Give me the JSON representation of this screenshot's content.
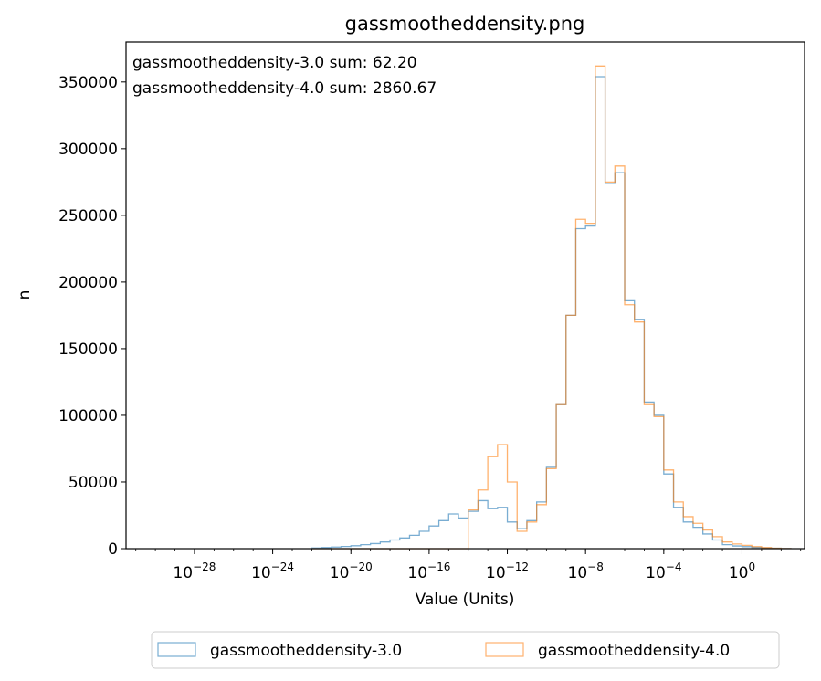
{
  "chart_data": {
    "type": "step-histogram",
    "title": "gassmootheddensity.png",
    "xlabel": "Value (Units)",
    "ylabel": "n",
    "xscale": "log",
    "xlim_log10": [
      -31.5,
      3.2
    ],
    "ylim": [
      0,
      380000
    ],
    "y_ticks": [
      0,
      50000,
      100000,
      150000,
      200000,
      250000,
      300000,
      350000
    ],
    "y_tick_labels": [
      "0",
      "50000",
      "100000",
      "150000",
      "200000",
      "250000",
      "300000",
      "350000"
    ],
    "x_ticks": [
      {
        "base": "10",
        "exp": "−28",
        "log10": -28
      },
      {
        "base": "10",
        "exp": "−24",
        "log10": -24
      },
      {
        "base": "10",
        "exp": "−20",
        "log10": -20
      },
      {
        "base": "10",
        "exp": "−16",
        "log10": -16
      },
      {
        "base": "10",
        "exp": "−12",
        "log10": -12
      },
      {
        "base": "10",
        "exp": "−8",
        "log10": -8
      },
      {
        "base": "10",
        "exp": "−4",
        "log10": -4
      },
      {
        "base": "10",
        "exp": "0",
        "log10": 0
      }
    ],
    "bin_edges_log10": [
      -22,
      -21.5,
      -21,
      -20.5,
      -20,
      -19.5,
      -19,
      -18.5,
      -18,
      -17.5,
      -17,
      -16.5,
      -16,
      -15.5,
      -15,
      -14.5,
      -14,
      -13.5,
      -13,
      -12.5,
      -12,
      -11.5,
      -11,
      -10.5,
      -10,
      -9.5,
      -9,
      -8.5,
      -8,
      -7.5,
      -7,
      -6.5,
      -6,
      -5.5,
      -5,
      -4.5,
      -4,
      -3.5,
      -3,
      -2.5,
      -2,
      -1.5,
      -1,
      -0.5,
      0,
      0.5,
      1,
      1.5,
      2,
      2.5
    ],
    "series": [
      {
        "name": "gassmootheddensity-3.0",
        "color": "#1f77b4",
        "values": [
          500,
          800,
          1200,
          1600,
          2200,
          3000,
          3800,
          5000,
          6500,
          8000,
          10000,
          13000,
          17000,
          21000,
          26000,
          23000,
          28000,
          36000,
          30000,
          31000,
          20000,
          15000,
          21000,
          35000,
          61000,
          108000,
          175000,
          240000,
          242000,
          354000,
          274000,
          282000,
          186000,
          172000,
          110000,
          100000,
          56000,
          31000,
          20000,
          16000,
          11000,
          6500,
          3000,
          2000,
          1500,
          1000,
          500,
          300,
          100
        ]
      },
      {
        "name": "gassmootheddensity-4.0",
        "color": "#ff7f0e",
        "values": [
          0,
          0,
          0,
          0,
          0,
          0,
          0,
          0,
          0,
          0,
          0,
          0,
          0,
          0,
          0,
          0,
          29000,
          44000,
          69000,
          78000,
          50000,
          13000,
          20000,
          33000,
          60000,
          108000,
          175000,
          247000,
          244000,
          362000,
          275000,
          287000,
          183000,
          170000,
          108000,
          99000,
          59000,
          35000,
          24000,
          19000,
          14000,
          9000,
          5000,
          3500,
          2500,
          1500,
          800,
          300,
          100
        ]
      }
    ],
    "annotations": [
      "gassmootheddensity-3.0 sum: 62.20",
      "gassmootheddensity-4.0 sum: 2860.67"
    ],
    "legend": {
      "placement": "bottom-center",
      "entries": [
        "gassmootheddensity-3.0",
        "gassmootheddensity-4.0"
      ]
    }
  }
}
